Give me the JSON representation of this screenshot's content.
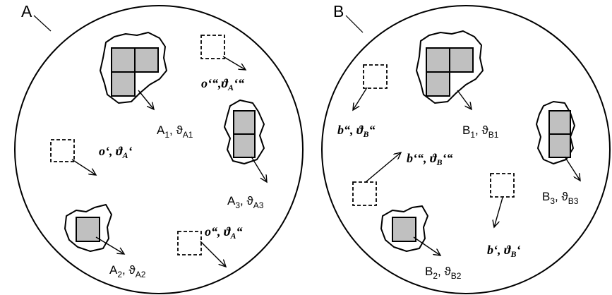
{
  "panels": {
    "a": {
      "letter": "A",
      "labels": {
        "a1": {
          "main": "A",
          "sub": "1",
          "theta": ", ϑ",
          "theta_sub": "A1"
        },
        "a2": {
          "main": "A",
          "sub": "2",
          "theta": ", ϑ",
          "theta_sub": "A2"
        },
        "a3": {
          "main": "A",
          "sub": "3",
          "theta": ", ϑ",
          "theta_sub": "A3"
        },
        "o1": {
          "text": "o‘, ϑ",
          "sup": "A",
          "tail": "‘"
        },
        "o2": {
          "text": "o“, ϑ",
          "sup": "A",
          "tail": "“"
        },
        "o3": {
          "text": "o‘“,ϑ",
          "sup": "A",
          "tail": "‘“"
        }
      }
    },
    "b": {
      "letter": "B",
      "labels": {
        "b1": {
          "main": "B",
          "sub": "1",
          "theta": ", ϑ",
          "theta_sub": "B1"
        },
        "b2": {
          "main": "B",
          "sub": "2",
          "theta": ", ϑ",
          "theta_sub": "B2"
        },
        "b3": {
          "main": "B",
          "sub": "3",
          "theta": ", ϑ",
          "theta_sub": "B3"
        },
        "bp1": {
          "text": "b‘, ϑ",
          "sup": "B",
          "tail": "‘"
        },
        "bp2": {
          "text": "b“, ϑ",
          "sup": "B",
          "tail": "“"
        },
        "bp3": {
          "text": "b‘“, ϑ",
          "sup": "B",
          "tail": "‘“"
        }
      }
    }
  }
}
